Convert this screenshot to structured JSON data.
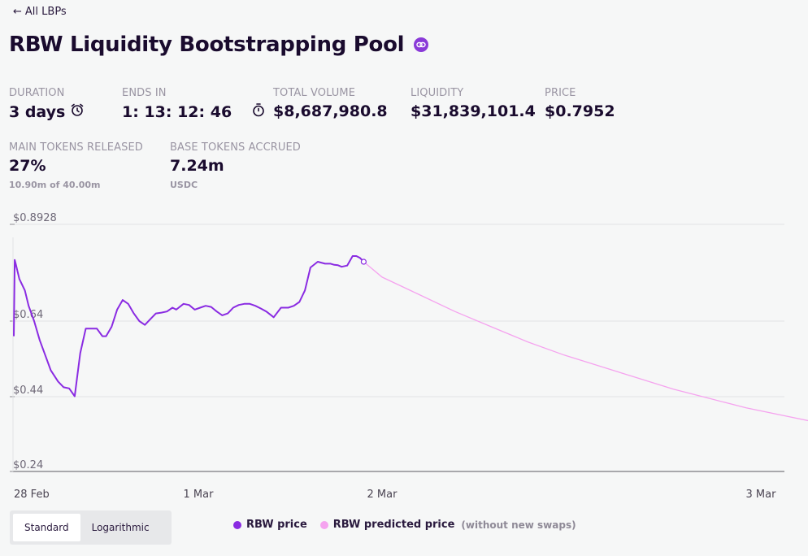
{
  "nav": {
    "back_label": "All LBPs",
    "back_arrow": "←"
  },
  "header": {
    "title": "RBW Liquidity Bootstrapping Pool",
    "chain_icon": "link-chain-icon",
    "badge_color": "#8a3ad8"
  },
  "stats": {
    "duration": {
      "label": "DURATION",
      "value": "3 days",
      "icon": "alarm-clock-icon"
    },
    "ends_in": {
      "label": "ENDS IN",
      "value": "1: 13: 12: 46",
      "icon": "stopwatch-icon"
    },
    "total_volume": {
      "label": "TOTAL VOLUME",
      "value": "$8,687,980.8"
    },
    "liquidity": {
      "label": "LIQUIDITY",
      "value": "$31,839,101.4"
    },
    "price": {
      "label": "PRICE",
      "value": "$0.7952"
    },
    "main_tokens_released": {
      "label": "MAIN TOKENS RELEASED",
      "value": "27%",
      "sub": "10.90m of 40.00m"
    },
    "base_tokens_accrued": {
      "label": "BASE TOKENS ACCRUED",
      "value": "7.24m",
      "sub": "USDC"
    }
  },
  "chart_data": {
    "type": "line",
    "y_ticks": [
      "$0.8928",
      "$0.64",
      "$0.44",
      "$0.24"
    ],
    "x_ticks": [
      "28 Feb",
      "1 Mar",
      "2 Mar",
      "3 Mar"
    ],
    "x_tick_days": [
      0,
      1,
      2,
      3
    ],
    "ylim": [
      0.24,
      0.8928
    ],
    "colors": {
      "actual": "#8a2be2",
      "predicted": "#f5a3ef"
    },
    "series": [
      {
        "name": "RBW price",
        "x_days": [
          0.0,
          0.005,
          0.01,
          0.03,
          0.06,
          0.08,
          0.11,
          0.14,
          0.17,
          0.2,
          0.24,
          0.27,
          0.3,
          0.33,
          0.36,
          0.39,
          0.42,
          0.45,
          0.48,
          0.5,
          0.53,
          0.56,
          0.59,
          0.62,
          0.65,
          0.68,
          0.71,
          0.74,
          0.77,
          0.8,
          0.83,
          0.86,
          0.88,
          0.92,
          0.95,
          0.98,
          1.01,
          1.04,
          1.07,
          1.1,
          1.13,
          1.16,
          1.19,
          1.22,
          1.25,
          1.28,
          1.31,
          1.34,
          1.37,
          1.41,
          1.45,
          1.49,
          1.52,
          1.55,
          1.58,
          1.61,
          1.65,
          1.69,
          1.71,
          1.72,
          1.74,
          1.76,
          1.78,
          1.81,
          1.84,
          1.86,
          1.88,
          1.9
        ],
        "values": [
          0.6,
          0.8,
          0.79,
          0.75,
          0.72,
          0.68,
          0.64,
          0.59,
          0.55,
          0.51,
          0.48,
          0.465,
          0.462,
          0.441,
          0.555,
          0.62,
          0.62,
          0.62,
          0.6,
          0.6,
          0.625,
          0.67,
          0.695,
          0.685,
          0.66,
          0.64,
          0.63,
          0.645,
          0.66,
          0.662,
          0.665,
          0.675,
          0.67,
          0.685,
          0.682,
          0.67,
          0.675,
          0.68,
          0.677,
          0.665,
          0.655,
          0.66,
          0.675,
          0.682,
          0.685,
          0.685,
          0.68,
          0.673,
          0.665,
          0.65,
          0.675,
          0.675,
          0.68,
          0.69,
          0.72,
          0.78,
          0.795,
          0.79,
          0.79,
          0.79,
          0.787,
          0.786,
          0.782,
          0.785,
          0.81,
          0.81,
          0.805,
          0.795
        ]
      },
      {
        "name": "RBW predicted price",
        "x_days": [
          1.9,
          2.0,
          2.1,
          2.2,
          2.3,
          2.4,
          2.5,
          2.6,
          2.7,
          2.8,
          2.9,
          3.0,
          3.1,
          3.2,
          3.3,
          3.4,
          3.5,
          3.6,
          3.75,
          3.9,
          4.0,
          4.12
        ],
        "values": [
          0.795,
          0.755,
          0.71,
          0.665,
          0.625,
          0.585,
          0.55,
          0.52,
          0.49,
          0.46,
          0.435,
          0.41,
          0.39,
          0.37,
          0.35,
          0.335,
          0.32,
          0.305,
          0.29,
          0.275,
          0.265,
          0.25
        ]
      }
    ],
    "legend": {
      "actual": "RBW price",
      "predicted": "RBW predicted price",
      "note": "(without new swaps)"
    }
  },
  "toggle": {
    "standard": "Standard",
    "logarithmic": "Logarithmic",
    "active": "standard"
  }
}
